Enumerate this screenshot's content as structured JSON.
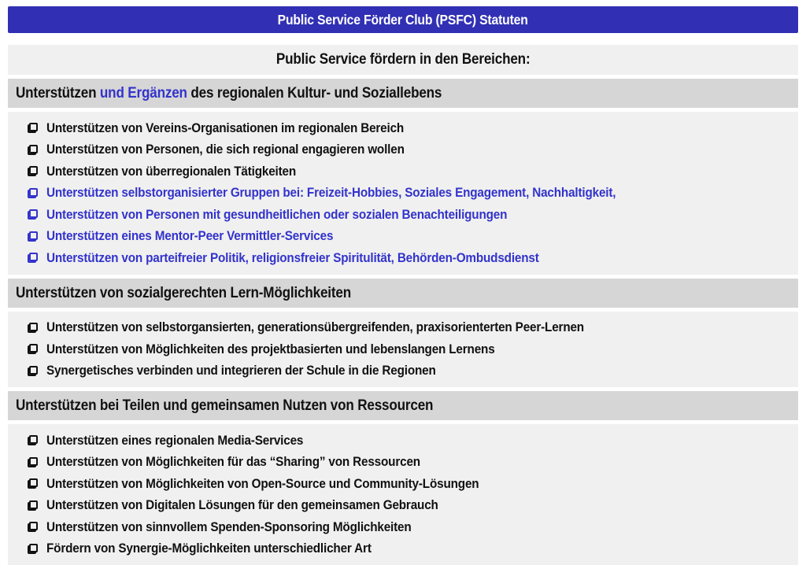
{
  "page": {
    "title": "Public Service Förder Club (PSFC) Statuten",
    "subtitle": "Public Service fördern in den Bereichen:"
  },
  "colors": {
    "title_bar_bg": "#3130b4",
    "title_text": "#ffffff",
    "accent_blue": "#3333cc",
    "section_header_bg": "#d6d6d6",
    "list_bg": "#f0f0f0",
    "body_text": "#111111"
  },
  "checkbox_icon": "unchecked-checkbox",
  "sections": [
    {
      "title_parts": [
        {
          "text": "Unterstützen ",
          "color": "black"
        },
        {
          "text": "und Ergänzen",
          "color": "blue"
        },
        {
          "text": " des regionalen Kultur- und Soziallebens",
          "color": "black"
        }
      ],
      "items": [
        {
          "text": "Unterstützen von Vereins-Organisationen im regionalen Bereich",
          "color": "black"
        },
        {
          "text": "Unterstützen von Personen, die sich regional engagieren wollen",
          "color": "black"
        },
        {
          "text": "Unterstützen von überregionalen Tätigkeiten",
          "color": "black"
        },
        {
          "text": "Unterstützen selbstorganisierter Gruppen bei: Freizeit-Hobbies, Soziales Engagement, Nachhaltigkeit,",
          "color": "blue"
        },
        {
          "text": "Unterstützen von Personen mit gesundheitlichen oder sozialen Benachteiligungen",
          "color": "blue"
        },
        {
          "text": "Unterstützen eines Mentor-Peer Vermittler-Services",
          "color": "blue"
        },
        {
          "text": "Unterstützen von parteifreier Politik, religionsfreier Spiritulität, Behörden-Ombudsdienst",
          "color": "blue"
        }
      ]
    },
    {
      "title_parts": [
        {
          "text": "Unterstützen von sozialgerechten Lern-Möglichkeiten",
          "color": "black"
        }
      ],
      "items": [
        {
          "text": "Unterstützen von selbstorgansierten, generationsübergreifenden, praxisorienterten Peer-Lernen",
          "color": "black"
        },
        {
          "text": "Unterstützen von Möglichkeiten des projektbasierten und lebenslangen Lernens",
          "color": "black"
        },
        {
          "text": "Synergetisches verbinden und integrieren der Schule in die Regionen",
          "color": "black"
        }
      ]
    },
    {
      "title_parts": [
        {
          "text": "Unterstützen bei Teilen und gemeinsamen Nutzen von Ressourcen",
          "color": "black"
        }
      ],
      "items": [
        {
          "text": "Unterstützen eines regionalen Media-Services",
          "color": "black"
        },
        {
          "text": "Unterstützen von Möglichkeiten für das “Sharing” von Ressourcen",
          "color": "black"
        },
        {
          "text": "Unterstützen von Möglichkeiten von Open-Source und Community-Lösungen",
          "color": "black"
        },
        {
          "text": "Unterstützen von Digitalen Lösungen für den gemeinsamen Gebrauch",
          "color": "black"
        },
        {
          "text": "Unterstützen von sinnvollem Spenden-Sponsoring Möglichkeiten",
          "color": "black"
        },
        {
          "text": "Fördern von Synergie-Möglichkeiten unterschiedlicher Art",
          "color": "black"
        }
      ]
    }
  ]
}
